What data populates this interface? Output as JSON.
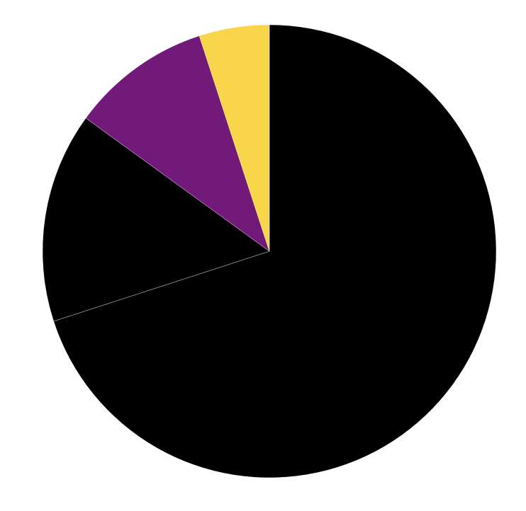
{
  "chart_data": {
    "type": "pie",
    "title": "",
    "start_angle": "top",
    "direction": "clockwise",
    "categories": [
      "",
      "",
      "",
      ""
    ],
    "values": [
      70,
      15,
      10,
      5
    ],
    "colors": [
      "#000000",
      "#000000",
      "#721a7a",
      "#f9d54a"
    ],
    "legend": "none"
  }
}
